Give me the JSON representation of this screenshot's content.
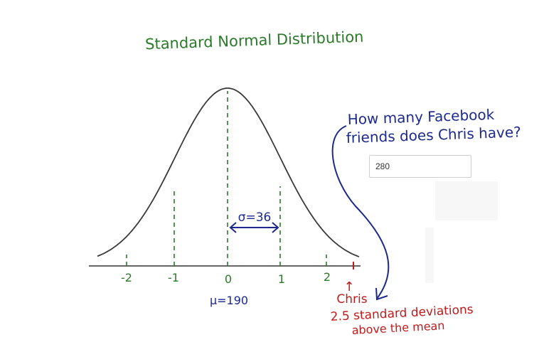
{
  "title": "Standard Normal Distribution",
  "question_line1": "How many Facebook",
  "question_line2": "friends does Chris have?",
  "answer": {
    "value": "280"
  },
  "sigma_label": "σ=36",
  "mu_label": "μ=190",
  "axis_ticks": [
    "-2",
    "-1",
    "0",
    "1",
    "2"
  ],
  "chris_arrow": "↑",
  "chris_label": "Chris",
  "note_line1": "2.5 standard deviations",
  "note_line2": "above the mean",
  "colors": {
    "green": "#2a7a2a",
    "blue": "#1c2a8f",
    "red": "#c21a1a",
    "curve": "#3a3a3a"
  }
}
